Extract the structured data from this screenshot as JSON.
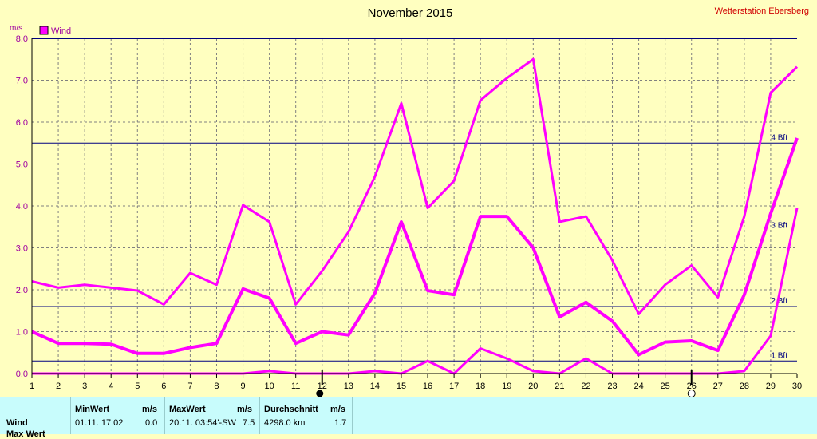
{
  "chart_data": {
    "type": "line",
    "title": "November 2015",
    "station": "Wetterstation Ebersberg",
    "ylabel": "m/s",
    "ylim": [
      0,
      8
    ],
    "yticks": [
      "0.0",
      "1.0",
      "2.0",
      "3.0",
      "4.0",
      "5.0",
      "6.0",
      "7.0",
      "8.0"
    ],
    "x": [
      1,
      2,
      3,
      4,
      5,
      6,
      7,
      8,
      9,
      10,
      11,
      12,
      13,
      14,
      15,
      16,
      17,
      18,
      19,
      20,
      21,
      22,
      23,
      24,
      25,
      26,
      27,
      28,
      29,
      30
    ],
    "legend": "Wind",
    "series": [
      {
        "values": [
          2.2,
          2.05,
          2.12,
          2.05,
          1.98,
          1.65,
          2.4,
          2.12,
          4.02,
          3.62,
          1.65,
          2.45,
          3.38,
          4.7,
          6.45,
          3.95,
          4.6,
          6.52,
          7.05,
          7.5,
          3.62,
          3.75,
          2.7,
          1.42,
          2.12,
          2.58,
          1.82,
          3.75,
          6.7,
          7.32
        ]
      },
      {
        "values": [
          1.0,
          0.72,
          0.72,
          0.7,
          0.48,
          0.48,
          0.62,
          0.72,
          2.02,
          1.8,
          0.72,
          1.0,
          0.92,
          1.92,
          3.62,
          1.98,
          1.88,
          3.75,
          3.75,
          3.0,
          1.35,
          1.7,
          1.25,
          0.45,
          0.75,
          0.78,
          0.55,
          1.88,
          3.82,
          5.62
        ]
      },
      {
        "values": [
          0,
          0,
          0,
          0,
          0,
          0,
          0,
          0,
          0,
          0.06,
          0,
          0,
          0,
          0.06,
          0,
          0.3,
          0,
          0.6,
          0.36,
          0.06,
          0,
          0.36,
          0,
          0,
          0,
          0,
          0,
          0.06,
          0.9,
          3.95
        ]
      }
    ],
    "beaufort": [
      {
        "label": "1 Bft",
        "value": 0.3
      },
      {
        "label": "2 Bft",
        "value": 1.6
      },
      {
        "label": "3 Bft",
        "value": 3.4
      },
      {
        "label": "4 Bft",
        "value": 5.5
      }
    ],
    "moon_phases": [
      {
        "day": 12,
        "phase": "new-moon"
      },
      {
        "day": 26,
        "phase": "full-moon"
      }
    ],
    "colors": {
      "line": "#ff00ff",
      "beaufort": "#000080",
      "axis": "#000080",
      "grid": "#808080"
    }
  },
  "summary": {
    "headers": {
      "min": "MinWert",
      "unit1": "m/s",
      "max": "MaxWert",
      "unit2": "m/s",
      "avg": "Durchschnitt",
      "unit3": "m/s"
    },
    "rows": [
      {
        "name": "Wind",
        "min_time": "01.11.  17:02",
        "min_val": "0.0",
        "max_time": "20.11.  03:54'-SW",
        "max_val": "7.5",
        "avg_dist": "4298.0 km",
        "avg_val": "1.7"
      },
      {
        "name": "Max Wert"
      }
    ]
  }
}
